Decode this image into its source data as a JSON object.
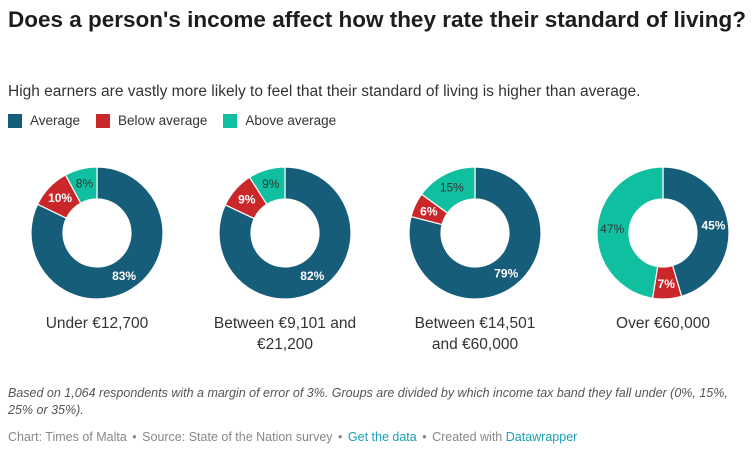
{
  "title": "Does a person's income affect how they rate their standard of living?",
  "subtitle": "High earners are vastly more likely to feel that their standard of living is higher than average.",
  "legend": [
    {
      "label": "Average",
      "color": "#165d7a"
    },
    {
      "label": "Below average",
      "color": "#c9272a"
    },
    {
      "label": "Above average",
      "color": "#10bfa0"
    }
  ],
  "chart_data": {
    "type": "pie",
    "series_names": [
      "Average",
      "Below average",
      "Above average"
    ],
    "colors": {
      "Average": "#165d7a",
      "Below average": "#c9272a",
      "Above average": "#10bfa0"
    },
    "charts": [
      {
        "label_lines": [
          "Under €12,700"
        ],
        "slices": [
          {
            "name": "Average",
            "value": 83
          },
          {
            "name": "Below average",
            "value": 10
          },
          {
            "name": "Above average",
            "value": 8
          }
        ]
      },
      {
        "label_lines": [
          "Between €9,101 and",
          "€21,200"
        ],
        "slices": [
          {
            "name": "Average",
            "value": 82
          },
          {
            "name": "Below average",
            "value": 9
          },
          {
            "name": "Above average",
            "value": 9
          }
        ]
      },
      {
        "label_lines": [
          "Between €14,501",
          "and €60,000"
        ],
        "slices": [
          {
            "name": "Average",
            "value": 79
          },
          {
            "name": "Below average",
            "value": 6
          },
          {
            "name": "Above average",
            "value": 15
          }
        ]
      },
      {
        "label_lines": [
          "Over €60,000"
        ],
        "slices": [
          {
            "name": "Average",
            "value": 45
          },
          {
            "name": "Below average",
            "value": 7
          },
          {
            "name": "Above average",
            "value": 47
          }
        ]
      }
    ]
  },
  "notes": "Based on 1,064 respondents with a margin of error of 3%. Groups are divided by which income tax band they fall under (0%, 15%, 25% or 35%).",
  "byline": {
    "chart_by": "Chart: Times of Malta",
    "sep": "•",
    "source": "Source: State of the Nation survey",
    "get_data": "Get the data",
    "created": "Created with",
    "tool": "Datawrapper"
  }
}
